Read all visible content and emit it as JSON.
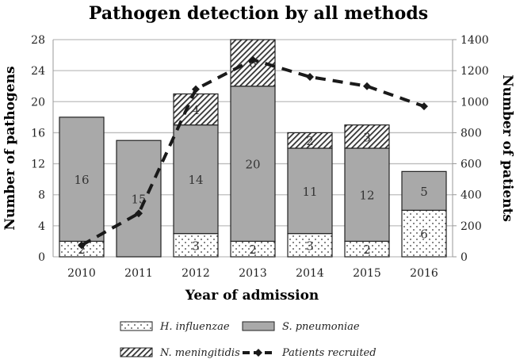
{
  "chart_data": {
    "type": "bar",
    "subtype": "stacked bar with secondary line",
    "title": "Pathogen detection by all methods",
    "xlabel": "Year of admission",
    "ylabel": "Number of pathogens",
    "y2label": "Number of patients",
    "ylim": [
      0,
      28
    ],
    "y2lim": [
      0,
      1400
    ],
    "yticks": [
      0,
      4,
      8,
      12,
      16,
      20,
      24,
      28
    ],
    "y2ticks": [
      0,
      200,
      400,
      600,
      800,
      1000,
      1200,
      1400
    ],
    "grid": true,
    "legend_position": "bottom",
    "categories": [
      "2010",
      "2011",
      "2012",
      "2013",
      "2014",
      "2015",
      "2016"
    ],
    "series": [
      {
        "name": "H. influenzae",
        "type": "bar",
        "axis": "left",
        "pattern": "dots",
        "values": [
          2,
          0,
          3,
          2,
          3,
          2,
          6
        ]
      },
      {
        "name": "S. pneumoniae",
        "type": "bar",
        "axis": "left",
        "color": "#a9a9a9",
        "values": [
          16,
          15,
          14,
          20,
          11,
          12,
          5
        ]
      },
      {
        "name": "N. meningitidis",
        "type": "bar",
        "axis": "left",
        "pattern": "hatch",
        "values": [
          0,
          0,
          4,
          6,
          2,
          3,
          0
        ]
      },
      {
        "name": "Patients recruited",
        "type": "line",
        "axis": "right",
        "style": "dashed",
        "color": "#1a1a1a",
        "values": [
          75,
          280,
          1080,
          1270,
          1160,
          1100,
          970
        ]
      }
    ]
  }
}
